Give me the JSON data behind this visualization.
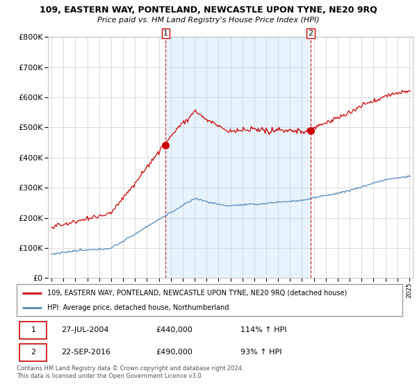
{
  "title": "109, EASTERN WAY, PONTELAND, NEWCASTLE UPON TYNE, NE20 9RQ",
  "subtitle": "Price paid vs. HM Land Registry's House Price Index (HPI)",
  "legend_line1": "109, EASTERN WAY, PONTELAND, NEWCASTLE UPON TYNE, NE20 9RQ (detached house)",
  "legend_line2": "HPI: Average price, detached house, Northumberland",
  "footer": "Contains HM Land Registry data © Crown copyright and database right 2024.\nThis data is licensed under the Open Government Licence v3.0.",
  "transaction1_date": "27-JUL-2004",
  "transaction1_price": "£440,000",
  "transaction1_hpi": "114% ↑ HPI",
  "transaction2_date": "22-SEP-2016",
  "transaction2_price": "£490,000",
  "transaction2_hpi": "93% ↑ HPI",
  "transaction1_x": 2004.57,
  "transaction2_x": 2016.72,
  "transaction1_y": 440000,
  "transaction2_y": 490000,
  "red_color": "#cc0000",
  "blue_color": "#5588bb",
  "shade_color": "#ddeeff",
  "ylim": [
    0,
    800000
  ],
  "xlim_left": 1994.7,
  "xlim_right": 2025.3,
  "background_color": "#ffffff",
  "grid_color": "#cccccc"
}
